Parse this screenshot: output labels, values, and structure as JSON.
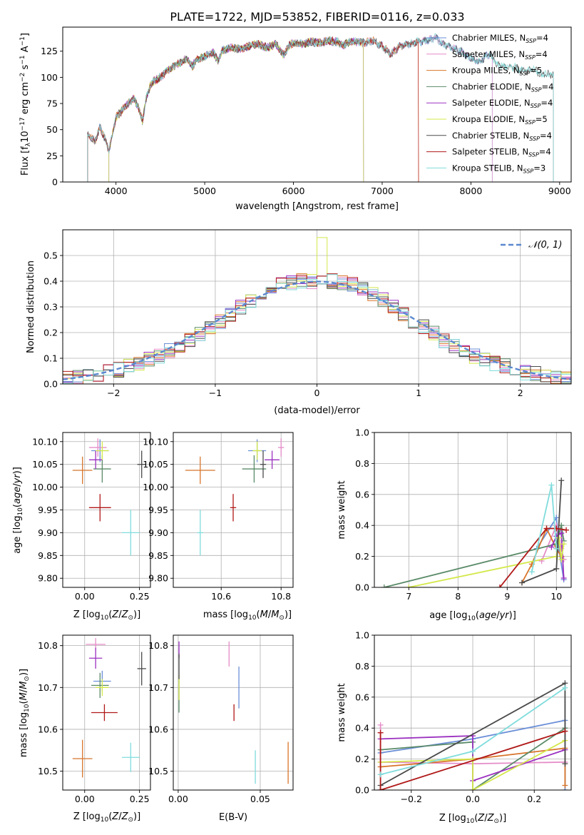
{
  "figure": {
    "title": "PLATE=1722, MJD=53852, FIBERID=0116, z=0.033"
  },
  "colors": {
    "Chabrier MILES": "#6a8ed8",
    "Salpeter MILES": "#e58cc8",
    "Kroupa MILES": "#d8742a",
    "Chabrier ELODIE": "#5a8a68",
    "Salpeter ELODIE": "#9b30c0",
    "Kroupa ELODIE": "#d4e84a",
    "Chabrier STELIB": "#4a4a4a",
    "Salpeter STELIB": "#b01818",
    "Kroupa STELIB": "#80dcdc",
    "normal": "#5a88d0"
  },
  "legend_labels": [
    {
      "pre": "Chabrier MILES, N",
      "sub": "SSP",
      "post": "=4"
    },
    {
      "pre": "Salpeter MILES, N",
      "sub": "SSP",
      "post": "=4"
    },
    {
      "pre": "Kroupa MILES, N",
      "sub": "SSP",
      "post": "=5"
    },
    {
      "pre": "Chabrier ELODIE, N",
      "sub": "SSP",
      "post": "=4"
    },
    {
      "pre": "Salpeter ELODIE, N",
      "sub": "SSP",
      "post": "=4"
    },
    {
      "pre": "Kroupa ELODIE, N",
      "sub": "SSP",
      "post": "=5"
    },
    {
      "pre": "Chabrier STELIB, N",
      "sub": "SSP",
      "post": "=4"
    },
    {
      "pre": "Salpeter STELIB, N",
      "sub": "SSP",
      "post": "=4"
    },
    {
      "pre": "Kroupa STELIB, N",
      "sub": "SSP",
      "post": "=3"
    }
  ],
  "chart_data": [
    {
      "id": "spectrum",
      "type": "line",
      "xlabel": "wavelength [Angstrom, rest frame]",
      "ylabel": "Flux [f_λ10^-17 erg cm^-2 s^-1 A^-1]",
      "xlim": [
        3400,
        9130
      ],
      "ylim": [
        0,
        148
      ],
      "xticks": [
        4000,
        5000,
        6000,
        7000,
        8000,
        9000
      ],
      "yticks": [
        0,
        25,
        50,
        75,
        100,
        125
      ],
      "legend_position": "upper right",
      "continuum_x": [
        3700,
        3760,
        3820,
        3880,
        3920,
        3960,
        4000,
        4050,
        4100,
        4150,
        4200,
        4260,
        4300,
        4340,
        4400,
        4500,
        4600,
        4700,
        4800,
        4860,
        4900,
        5000,
        5100,
        5150,
        5200,
        5300,
        5400,
        5500,
        5600,
        5700,
        5800,
        5890,
        5950,
        6000,
        6100,
        6200,
        6300,
        6400,
        6500,
        6563,
        6600,
        6700,
        6800,
        6900,
        7000,
        7100,
        7200,
        7300,
        7400,
        7500,
        7600,
        7700,
        7800,
        7900,
        8000,
        8100,
        8200,
        8300,
        8400,
        8500,
        8600,
        8700,
        8800,
        8900,
        9000,
        9100
      ],
      "continuum_y": [
        45,
        38,
        52,
        40,
        30,
        45,
        62,
        66,
        72,
        76,
        80,
        70,
        58,
        80,
        95,
        100,
        108,
        113,
        118,
        110,
        116,
        120,
        124,
        115,
        126,
        128,
        127,
        130,
        132,
        128,
        132,
        121,
        130,
        133,
        132,
        134,
        133,
        135,
        134,
        130,
        133,
        134,
        133,
        135,
        130,
        122,
        130,
        132,
        134,
        135,
        138,
        131,
        128,
        124,
        118,
        115,
        122,
        112,
        111,
        109,
        106,
        108,
        103,
        103,
        100,
        98
      ],
      "series": [
        {
          "name": "Chabrier MILES",
          "x_range": [
            3680,
            8240
          ]
        },
        {
          "name": "Salpeter MILES",
          "x_range": [
            3680,
            8240
          ]
        },
        {
          "name": "Kroupa MILES",
          "x_range": [
            3680,
            7410
          ]
        },
        {
          "name": "Chabrier ELODIE",
          "x_range": [
            3920,
            6790
          ]
        },
        {
          "name": "Salpeter ELODIE",
          "x_range": [
            3920,
            6790
          ]
        },
        {
          "name": "Kroupa ELODIE",
          "x_range": [
            3920,
            6790
          ]
        },
        {
          "name": "Chabrier STELIB",
          "x_range": [
            3680,
            8930
          ]
        },
        {
          "name": "Salpeter STELIB",
          "x_range": [
            3680,
            7410
          ]
        },
        {
          "name": "Kroupa STELIB",
          "x_range": [
            3680,
            8930
          ]
        }
      ]
    },
    {
      "id": "residuals",
      "type": "line",
      "xlabel": "(data-model)/error",
      "ylabel": "Normed distribution",
      "xlim": [
        -2.5,
        2.5
      ],
      "ylim": [
        0,
        0.6
      ],
      "xticks": [
        -2,
        -1,
        0,
        1,
        2
      ],
      "yticks": [
        0.0,
        0.1,
        0.2,
        0.3,
        0.4,
        0.5
      ],
      "grid": true,
      "legend": {
        "label": "𝒩(0, 1)",
        "position": "upper right"
      },
      "bin_width": 0.1,
      "histogram_shape_amplitude": [
        0.02,
        0.025,
        0.03,
        0.038,
        0.045,
        0.055,
        0.068,
        0.08,
        0.095,
        0.11,
        0.13,
        0.15,
        0.17,
        0.195,
        0.22,
        0.245,
        0.27,
        0.3,
        0.325,
        0.35,
        0.37,
        0.385,
        0.395,
        0.4,
        0.399,
        0.395,
        0.385,
        0.37,
        0.35,
        0.325,
        0.3,
        0.27,
        0.245,
        0.22,
        0.195,
        0.17,
        0.15,
        0.13,
        0.11,
        0.095,
        0.08,
        0.068,
        0.055,
        0.045,
        0.038,
        0.03,
        0.025,
        0.02,
        0.017,
        0.015
      ],
      "normal_curve": {
        "mu": 0,
        "sigma": 1
      }
    },
    {
      "id": "Z_vs_age",
      "type": "scatter",
      "xlabel": "Z [log10(Z/Z⊙)]",
      "ylabel": "age [log10(age/yr)]",
      "xlim": [
        -0.1,
        0.3
      ],
      "ylim": [
        9.78,
        10.12
      ],
      "xticks": [
        0.0,
        0.25
      ],
      "xtick_labels": [
        "0.00",
        "0.25"
      ],
      "yticks": [
        9.8,
        9.85,
        9.9,
        9.95,
        10.0,
        10.05,
        10.1
      ],
      "points": [
        {
          "name": "Chabrier MILES",
          "x": 0.07,
          "y": 10.08,
          "xerr": 0.04,
          "yerr": 0.025
        },
        {
          "name": "Salpeter MILES",
          "x": 0.06,
          "y": 10.087,
          "xerr": 0.04,
          "yerr": 0.02
        },
        {
          "name": "Kroupa MILES",
          "x": -0.01,
          "y": 10.037,
          "xerr": 0.045,
          "yerr": 0.03
        },
        {
          "name": "Chabrier ELODIE",
          "x": 0.08,
          "y": 10.04,
          "xerr": 0.04,
          "yerr": 0.03
        },
        {
          "name": "Salpeter ELODIE",
          "x": 0.05,
          "y": 10.06,
          "xerr": 0.03,
          "yerr": 0.02
        },
        {
          "name": "Kroupa ELODIE",
          "x": 0.08,
          "y": 10.08,
          "xerr": 0.03,
          "yerr": 0.02
        },
        {
          "name": "Chabrier STELIB",
          "x": 0.26,
          "y": 10.05,
          "xerr": 0.02,
          "yerr": 0.03
        },
        {
          "name": "Salpeter STELIB",
          "x": 0.07,
          "y": 9.955,
          "xerr": 0.05,
          "yerr": 0.03
        },
        {
          "name": "Kroupa STELIB",
          "x": 0.21,
          "y": 9.9,
          "xerr": 0.04,
          "yerr": 0.05
        }
      ]
    },
    {
      "id": "mass_vs_age",
      "type": "scatter",
      "xlabel": "mass [log10(M/M⊙)]",
      "ylabel": "",
      "xlim": [
        10.44,
        10.84
      ],
      "ylim": [
        9.78,
        10.12
      ],
      "xticks": [
        10.6,
        10.8
      ],
      "xtick_labels": [
        "10.6",
        "10.8"
      ],
      "yticks": [
        9.8,
        9.85,
        9.9,
        9.95,
        10.0,
        10.05,
        10.1
      ],
      "points": [
        {
          "name": "Chabrier MILES",
          "x": 10.72,
          "y": 10.08,
          "xerr": 0.03,
          "yerr": 0.025
        },
        {
          "name": "Salpeter MILES",
          "x": 10.8,
          "y": 10.087,
          "xerr": 0.01,
          "yerr": 0.02
        },
        {
          "name": "Kroupa MILES",
          "x": 10.53,
          "y": 10.037,
          "xerr": 0.05,
          "yerr": 0.03
        },
        {
          "name": "Chabrier ELODIE",
          "x": 10.71,
          "y": 10.04,
          "xerr": 0.04,
          "yerr": 0.03
        },
        {
          "name": "Salpeter ELODIE",
          "x": 10.77,
          "y": 10.06,
          "xerr": 0.025,
          "yerr": 0.02
        },
        {
          "name": "Kroupa ELODIE",
          "x": 10.72,
          "y": 10.08,
          "xerr": 0.015,
          "yerr": 0.02
        },
        {
          "name": "Chabrier STELIB",
          "x": 10.74,
          "y": 10.05,
          "xerr": 0.01,
          "yerr": 0.03
        },
        {
          "name": "Salpeter STELIB",
          "x": 10.64,
          "y": 9.955,
          "xerr": 0.01,
          "yerr": 0.03
        },
        {
          "name": "Kroupa STELIB",
          "x": 10.53,
          "y": 9.9,
          "xerr": 0.01,
          "yerr": 0.05
        }
      ]
    },
    {
      "id": "age_vs_weight",
      "type": "line",
      "xlabel": "age  [log10(age/yr)]",
      "ylabel": "mass weight",
      "xlim": [
        6.3,
        10.3
      ],
      "ylim": [
        0,
        1.0
      ],
      "xticks": [
        7,
        8,
        9,
        10
      ],
      "yticks": [
        0.0,
        0.2,
        0.4,
        0.6,
        0.8,
        1.0
      ],
      "grid": true,
      "series": [
        {
          "name": "Chabrier MILES",
          "x": [
            9.6,
            10.0,
            10.05,
            10.15
          ],
          "y": [
            0.25,
            0.45,
            0.25,
            0.05
          ]
        },
        {
          "name": "Salpeter MILES",
          "x": [
            9.7,
            10.0,
            10.1,
            10.15
          ],
          "y": [
            0.17,
            0.4,
            0.25,
            0.18
          ]
        },
        {
          "name": "Kroupa MILES",
          "x": [
            9.3,
            9.5,
            9.8,
            10.0,
            10.1
          ],
          "y": [
            0.03,
            0.15,
            0.38,
            0.25,
            0.2
          ]
        },
        {
          "name": "Chabrier ELODIE",
          "x": [
            6.5,
            10.0,
            10.1,
            10.15
          ],
          "y": [
            0.0,
            0.28,
            0.4,
            0.3
          ]
        },
        {
          "name": "Salpeter ELODIE",
          "x": [
            9.9,
            10.0,
            10.1,
            10.15
          ],
          "y": [
            0.26,
            0.33,
            0.35,
            0.06
          ]
        },
        {
          "name": "Kroupa ELODIE",
          "x": [
            7.0,
            10.0,
            10.05,
            10.1,
            10.15
          ],
          "y": [
            0.0,
            0.2,
            0.32,
            0.18,
            0.28
          ]
        },
        {
          "name": "Chabrier STELIB",
          "x": [
            9.3,
            10.0,
            10.1
          ],
          "y": [
            0.03,
            0.12,
            0.69
          ]
        },
        {
          "name": "Salpeter STELIB",
          "x": [
            8.85,
            9.8,
            10.0,
            10.2
          ],
          "y": [
            0.0,
            0.38,
            0.38,
            0.37
          ]
        },
        {
          "name": "Kroupa STELIB",
          "x": [
            9.5,
            9.9,
            10.0
          ],
          "y": [
            0.1,
            0.66,
            0.25
          ]
        }
      ]
    },
    {
      "id": "Z_vs_mass",
      "type": "scatter",
      "xlabel": "Z [log10(Z/Z⊙)]",
      "ylabel": "mass [log10(M/M⊙)]",
      "xlim": [
        -0.1,
        0.3
      ],
      "ylim": [
        10.455,
        10.825
      ],
      "xticks": [
        0.0,
        0.25
      ],
      "xtick_labels": [
        "0.00",
        "0.25"
      ],
      "yticks": [
        10.5,
        10.6,
        10.7,
        10.8
      ],
      "points": [
        {
          "name": "Chabrier MILES",
          "x": 0.08,
          "y": 10.715,
          "xerr": 0.04,
          "yerr": 0.025
        },
        {
          "name": "Salpeter MILES",
          "x": 0.05,
          "y": 10.803,
          "xerr": 0.045,
          "yerr": 0.015
        },
        {
          "name": "Kroupa MILES",
          "x": -0.01,
          "y": 10.53,
          "xerr": 0.045,
          "yerr": 0.045
        },
        {
          "name": "Chabrier ELODIE",
          "x": 0.07,
          "y": 10.705,
          "xerr": 0.04,
          "yerr": 0.03
        },
        {
          "name": "Salpeter ELODIE",
          "x": 0.05,
          "y": 10.77,
          "xerr": 0.03,
          "yerr": 0.025
        },
        {
          "name": "Kroupa ELODIE",
          "x": 0.08,
          "y": 10.7,
          "xerr": 0.03,
          "yerr": 0.02
        },
        {
          "name": "Chabrier STELIB",
          "x": 0.26,
          "y": 10.745,
          "xerr": 0.02,
          "yerr": 0.04
        },
        {
          "name": "Salpeter STELIB",
          "x": 0.09,
          "y": 10.64,
          "xerr": 0.06,
          "yerr": 0.02
        },
        {
          "name": "Kroupa STELIB",
          "x": 0.21,
          "y": 10.533,
          "xerr": 0.04,
          "yerr": 0.035
        }
      ]
    },
    {
      "id": "ebv_vs_mass",
      "type": "scatter",
      "xlabel": "E(B-V)",
      "ylabel": "",
      "xlim": [
        -0.003,
        0.07
      ],
      "ylim": [
        10.455,
        10.825
      ],
      "xticks": [
        0.0,
        0.05
      ],
      "xtick_labels": [
        "0.00",
        "0.05"
      ],
      "yticks": [
        10.5,
        10.6,
        10.7,
        10.8
      ],
      "points": [
        {
          "name": "Chabrier MILES",
          "x": 0.037,
          "y": 10.7,
          "xerr": 0,
          "yerr": 0.05
        },
        {
          "name": "Salpeter MILES",
          "x": 0.031,
          "y": 10.78,
          "xerr": 0,
          "yerr": 0.03
        },
        {
          "name": "Kroupa MILES",
          "x": 0.067,
          "y": 10.52,
          "xerr": 0,
          "yerr": 0.05
        },
        {
          "name": "Chabrier ELODIE",
          "x": 0.0005,
          "y": 10.68,
          "xerr": 0,
          "yerr": 0.04
        },
        {
          "name": "Salpeter ELODIE",
          "x": 0.0005,
          "y": 10.79,
          "xerr": 0,
          "yerr": 0.02
        },
        {
          "name": "Kroupa ELODIE",
          "x": 0.0005,
          "y": 10.7,
          "xerr": 0,
          "yerr": 0.03
        },
        {
          "name": "Chabrier STELIB",
          "x": 0.0005,
          "y": 10.75,
          "xerr": 0,
          "yerr": 0.03
        },
        {
          "name": "Salpeter STELIB",
          "x": 0.034,
          "y": 10.64,
          "xerr": 0,
          "yerr": 0.02
        },
        {
          "name": "Kroupa STELIB",
          "x": 0.047,
          "y": 10.51,
          "xerr": 0,
          "yerr": 0.04
        }
      ]
    },
    {
      "id": "Z_vs_weight",
      "type": "line",
      "xlabel": "Z [log10(Z/Z⊙)]",
      "ylabel": "mass weight",
      "xlim": [
        -0.32,
        0.32
      ],
      "ylim": [
        0,
        1.0
      ],
      "xticks": [
        -0.2,
        0.0,
        0.2
      ],
      "xtick_labels": [
        "−0.2",
        "0.0",
        "0.2"
      ],
      "yticks": [
        0.0,
        0.2,
        0.4,
        0.6,
        0.8,
        1.0
      ],
      "grid": true,
      "series": [
        {
          "name": "Chabrier MILES",
          "x": [
            -0.3,
            0.0,
            0.3,
            0.3
          ],
          "y": [
            0.24,
            0.33,
            0.45,
            0.0
          ]
        },
        {
          "name": "Salpeter MILES",
          "x": [
            -0.3,
            -0.3,
            0.0,
            0.3
          ],
          "y": [
            0.42,
            0.18,
            0.17,
            0.18
          ]
        },
        {
          "name": "Kroupa MILES",
          "x": [
            -0.3,
            0.0,
            0.3,
            0.3
          ],
          "y": [
            0.15,
            0.2,
            0.27,
            0.03
          ]
        },
        {
          "name": "Chabrier ELODIE",
          "x": [
            -0.3,
            0.0,
            0.0,
            0.3
          ],
          "y": [
            0.26,
            0.31,
            0.0,
            0.4
          ]
        },
        {
          "name": "Salpeter ELODIE",
          "x": [
            -0.3,
            0.0,
            0.0,
            0.3
          ],
          "y": [
            0.33,
            0.35,
            0.06,
            0.26
          ]
        },
        {
          "name": "Kroupa ELODIE",
          "x": [
            -0.3,
            0.0,
            0.0,
            0.3
          ],
          "y": [
            0.18,
            0.2,
            0.0,
            0.32
          ]
        },
        {
          "name": "Chabrier STELIB",
          "x": [
            -0.3,
            -0.3,
            0.3,
            0.3
          ],
          "y": [
            0.0,
            0.03,
            0.69,
            0.17
          ]
        },
        {
          "name": "Salpeter STELIB",
          "x": [
            -0.3,
            -0.3,
            0.3
          ],
          "y": [
            0.37,
            0.0,
            0.38
          ]
        },
        {
          "name": "Kroupa STELIB",
          "x": [
            -0.3,
            0.0,
            0.3
          ],
          "y": [
            0.1,
            0.25,
            0.66
          ]
        }
      ]
    }
  ]
}
